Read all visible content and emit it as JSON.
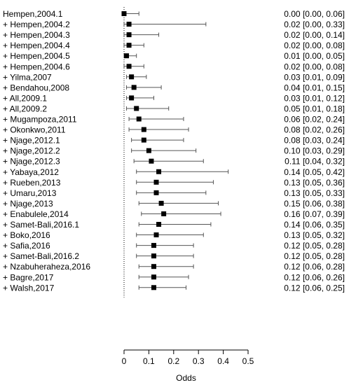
{
  "chart_data": {
    "type": "forest",
    "xlabel": "Odds",
    "xlim": [
      0,
      0.5
    ],
    "xticks": [
      "0",
      "0.1",
      "0.2",
      "0.3",
      "0.4",
      "0.5"
    ],
    "reference_line": 0,
    "studies": [
      {
        "label": "Hempen,2004.1",
        "odds": 0.0,
        "lo": 0.0,
        "hi": 0.06,
        "ci_text": "0.00 [0.00, 0.06]"
      },
      {
        "label": "+ Hempen,2004.2",
        "odds": 0.02,
        "lo": 0.0,
        "hi": 0.33,
        "ci_text": "0.02 [0.00, 0.33]"
      },
      {
        "label": "+ Hempen,2004.3",
        "odds": 0.02,
        "lo": 0.0,
        "hi": 0.14,
        "ci_text": "0.02 [0.00, 0.14]"
      },
      {
        "label": "+ Hempen,2004.4",
        "odds": 0.02,
        "lo": 0.0,
        "hi": 0.08,
        "ci_text": "0.02 [0.00, 0.08]"
      },
      {
        "label": "+ Hempen,2004.5",
        "odds": 0.01,
        "lo": 0.0,
        "hi": 0.05,
        "ci_text": "0.01 [0.00, 0.05]"
      },
      {
        "label": "+ Hempen,2004.6",
        "odds": 0.02,
        "lo": 0.0,
        "hi": 0.08,
        "ci_text": "0.02 [0.00, 0.08]"
      },
      {
        "label": "+ Yilma,2007",
        "odds": 0.03,
        "lo": 0.01,
        "hi": 0.09,
        "ci_text": "0.03 [0.01, 0.09]"
      },
      {
        "label": "+ Bendahou,2008",
        "odds": 0.04,
        "lo": 0.01,
        "hi": 0.15,
        "ci_text": "0.04 [0.01, 0.15]"
      },
      {
        "label": "+ All,2009.1",
        "odds": 0.03,
        "lo": 0.01,
        "hi": 0.12,
        "ci_text": "0.03 [0.01, 0.12]"
      },
      {
        "label": "+ All,2009.2",
        "odds": 0.05,
        "lo": 0.01,
        "hi": 0.18,
        "ci_text": "0.05 [0.01, 0.18]"
      },
      {
        "label": "+ Mugampoza,2011",
        "odds": 0.06,
        "lo": 0.02,
        "hi": 0.24,
        "ci_text": "0.06 [0.02, 0.24]"
      },
      {
        "label": "+ Okonkwo,2011",
        "odds": 0.08,
        "lo": 0.02,
        "hi": 0.26,
        "ci_text": "0.08 [0.02, 0.26]"
      },
      {
        "label": "+ Njage,2012.1",
        "odds": 0.08,
        "lo": 0.03,
        "hi": 0.24,
        "ci_text": "0.08 [0.03, 0.24]"
      },
      {
        "label": "+ Njage,2012.2",
        "odds": 0.1,
        "lo": 0.03,
        "hi": 0.29,
        "ci_text": "0.10 [0.03, 0.29]"
      },
      {
        "label": "+ Njage,2012.3",
        "odds": 0.11,
        "lo": 0.04,
        "hi": 0.32,
        "ci_text": "0.11 [0.04, 0.32]"
      },
      {
        "label": "+ Yabaya,2012",
        "odds": 0.14,
        "lo": 0.05,
        "hi": 0.42,
        "ci_text": "0.14 [0.05, 0.42]"
      },
      {
        "label": "+ Rueben,2013",
        "odds": 0.13,
        "lo": 0.05,
        "hi": 0.36,
        "ci_text": "0.13 [0.05, 0.36]"
      },
      {
        "label": "+ Umaru,2013",
        "odds": 0.13,
        "lo": 0.05,
        "hi": 0.33,
        "ci_text": "0.13 [0.05, 0.33]"
      },
      {
        "label": "+ Njage,2013",
        "odds": 0.15,
        "lo": 0.06,
        "hi": 0.38,
        "ci_text": "0.15 [0.06, 0.38]"
      },
      {
        "label": "+ Enabulele,2014",
        "odds": 0.16,
        "lo": 0.07,
        "hi": 0.39,
        "ci_text": "0.16 [0.07, 0.39]"
      },
      {
        "label": "+ Samet-Bali,2016.1",
        "odds": 0.14,
        "lo": 0.06,
        "hi": 0.35,
        "ci_text": "0.14 [0.06, 0.35]"
      },
      {
        "label": "+ Boko,2016",
        "odds": 0.13,
        "lo": 0.05,
        "hi": 0.32,
        "ci_text": "0.13 [0.05, 0.32]"
      },
      {
        "label": "+ Safia,2016",
        "odds": 0.12,
        "lo": 0.05,
        "hi": 0.28,
        "ci_text": "0.12 [0.05, 0.28]"
      },
      {
        "label": "+ Samet-Bali,2016.2",
        "odds": 0.12,
        "lo": 0.05,
        "hi": 0.28,
        "ci_text": "0.12 [0.05, 0.28]"
      },
      {
        "label": "+ Nzabuheraheza,2016",
        "odds": 0.12,
        "lo": 0.06,
        "hi": 0.28,
        "ci_text": "0.12 [0.06, 0.28]"
      },
      {
        "label": "+ Bagre,2017",
        "odds": 0.12,
        "lo": 0.06,
        "hi": 0.26,
        "ci_text": "0.12 [0.06, 0.26]"
      },
      {
        "label": "+ Walsh,2017",
        "odds": 0.12,
        "lo": 0.06,
        "hi": 0.25,
        "ci_text": "0.12 [0.06, 0.25]"
      }
    ],
    "colors": {
      "marker": "#000000",
      "ci_line": "#555555",
      "reference_line": "#000000",
      "axis": "#000000"
    }
  }
}
